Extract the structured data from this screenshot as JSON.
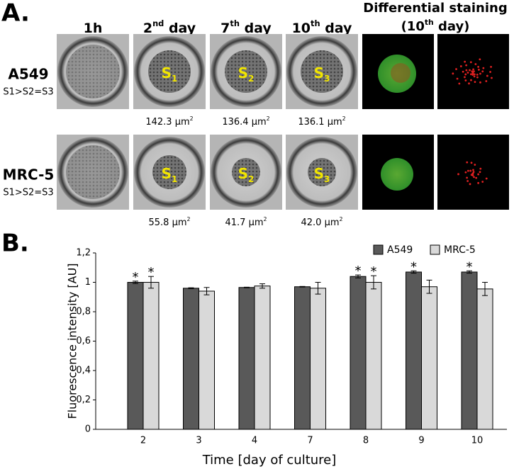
{
  "panel_a": {
    "label": "A.",
    "columns": [
      {
        "text": "1h"
      },
      {
        "base": "2",
        "sup": "nd",
        "after": " day"
      },
      {
        "base": "7",
        "sup": "th",
        "after": " day"
      },
      {
        "base": "10",
        "sup": "th",
        "after": " day"
      }
    ],
    "staining_title": {
      "line1": "Differential staining",
      "base": "(10",
      "sup": "th",
      "after": " day)"
    },
    "rows": [
      {
        "name": "A549",
        "order": "S1>S2=S3",
        "spheroids": [
          {
            "base": "S",
            "sub": "1"
          },
          {
            "base": "S",
            "sub": "2"
          },
          {
            "base": "S",
            "sub": "3"
          }
        ],
        "areas": [
          {
            "text": "142.3 µm",
            "sup": "2"
          },
          {
            "text": "136.4 µm",
            "sup": "2"
          },
          {
            "text": "136.1 µm",
            "sup": "2"
          }
        ]
      },
      {
        "name": "MRC-5",
        "order": "S1>S2=S3",
        "spheroids": [
          {
            "base": "S",
            "sub": "1"
          },
          {
            "base": "S",
            "sub": "2"
          },
          {
            "base": "S",
            "sub": "3"
          }
        ],
        "areas": [
          {
            "text": "55.8 µm",
            "sup": "2"
          },
          {
            "text": "41.7 µm",
            "sup": "2"
          },
          {
            "text": "42.0 µm",
            "sup": "2"
          }
        ]
      }
    ]
  },
  "chart_data": {
    "type": "bar",
    "panel_label": "B.",
    "y_label": "Fluorescence intensity [AU]",
    "x_label": "Time [day of culture]",
    "categories": [
      "2",
      "3",
      "4",
      "7",
      "8",
      "9",
      "10"
    ],
    "series": [
      {
        "name": "A549",
        "color": "#595959",
        "values": [
          1.0,
          0.96,
          0.965,
          0.97,
          1.04,
          1.07,
          1.07
        ],
        "errors": [
          0.008,
          0.003,
          0.002,
          0.002,
          0.01,
          0.008,
          0.008
        ],
        "markers": [
          "*",
          null,
          null,
          null,
          "*",
          "*",
          "*"
        ]
      },
      {
        "name": "MRC-5",
        "color": "#d9d9d9",
        "values": [
          1.0,
          0.94,
          0.975,
          0.96,
          1.0,
          0.97,
          0.955
        ],
        "errors": [
          0.04,
          0.025,
          0.015,
          0.04,
          0.045,
          0.045,
          0.045
        ],
        "markers": [
          "*",
          null,
          null,
          null,
          "*",
          null,
          null
        ]
      }
    ],
    "ylim": [
      0,
      1.2
    ],
    "yticks": [
      0,
      {
        "value": 0.2,
        "label": "0,2"
      },
      {
        "value": 0.4,
        "label": "0,4"
      },
      {
        "value": 0.6,
        "label": "0,6"
      },
      {
        "value": 0.8,
        "label": "0,8"
      },
      1,
      {
        "value": 1.2,
        "label": "1,2"
      }
    ],
    "grid": false,
    "legend": "top-right"
  }
}
